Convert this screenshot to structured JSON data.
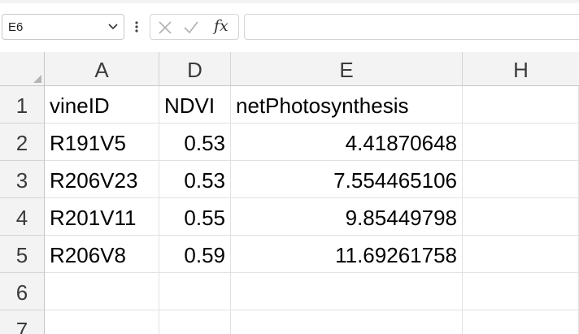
{
  "name_box": {
    "value": "E6"
  },
  "formula_bar": {
    "value": "",
    "fx_label": "fx"
  },
  "columns": [
    "A",
    "D",
    "E",
    "H"
  ],
  "rows": [
    {
      "num": "1",
      "cells": [
        "vineID",
        "NDVI",
        "netPhotosynthesis",
        ""
      ]
    },
    {
      "num": "2",
      "cells": [
        "R191V5",
        "0.53",
        "4.41870648",
        ""
      ]
    },
    {
      "num": "3",
      "cells": [
        "R206V23",
        "0.53",
        "7.554465106",
        ""
      ]
    },
    {
      "num": "4",
      "cells": [
        "R201V11",
        "0.55",
        "9.85449798",
        ""
      ]
    },
    {
      "num": "5",
      "cells": [
        "R206V8",
        "0.59",
        "11.69261758",
        ""
      ]
    },
    {
      "num": "6",
      "cells": [
        "",
        "",
        "",
        ""
      ]
    },
    {
      "num": "7",
      "cells": [
        "",
        "",
        "",
        ""
      ]
    }
  ],
  "colors": {
    "header_bg": "#f3f3f3",
    "grid_line": "#e1e1e1"
  }
}
